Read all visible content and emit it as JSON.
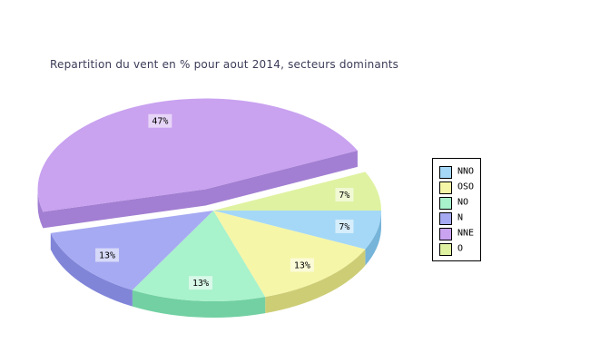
{
  "chart_data": {
    "type": "pie",
    "style": "3d-exploded",
    "title": "Repartition du vent en % pour aout 2014, secteurs dominants",
    "title_color": "#3b3b58",
    "background": "#ffffff",
    "unit": "%",
    "start_angle_deg": 0,
    "direction": "clockwise",
    "legend_position": "right",
    "slices": [
      {
        "label": "NNO",
        "value": 7,
        "display": "7%",
        "color": "#a5d8f7",
        "side_color": "#76b4d9",
        "exploded": false
      },
      {
        "label": "OSO",
        "value": 13,
        "display": "13%",
        "color": "#f6f6a8",
        "side_color": "#cdcd76",
        "exploded": false
      },
      {
        "label": "NO",
        "value": 13,
        "display": "13%",
        "color": "#a8f2cc",
        "side_color": "#72d0a2",
        "exploded": false
      },
      {
        "label": "N",
        "value": 13,
        "display": "13%",
        "color": "#a6aaf2",
        "side_color": "#8085d8",
        "exploded": false
      },
      {
        "label": "NNE",
        "value": 47,
        "display": "47%",
        "color": "#c9a2f0",
        "side_color": "#a27fd2",
        "exploded": true
      },
      {
        "label": "O",
        "value": 7,
        "display": "7%",
        "color": "#dff2a1",
        "side_color": "#bcd07c",
        "exploded": false
      }
    ]
  }
}
